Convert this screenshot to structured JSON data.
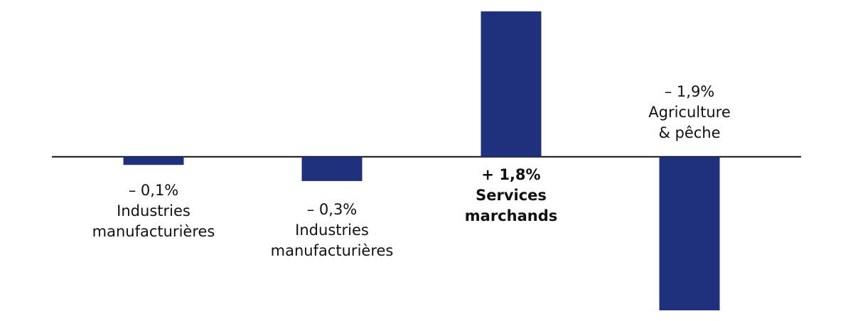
{
  "chart_data": {
    "type": "bar",
    "categories": [
      [
        "Industries",
        "manufacturières"
      ],
      [
        "Industries",
        "manufacturières"
      ],
      [
        "Services",
        "marchands"
      ],
      [
        "Agriculture",
        "& pêche"
      ]
    ],
    "values": [
      -0.1,
      -0.3,
      1.8,
      -1.9
    ],
    "value_labels": [
      "– 0,1%",
      "– 0,3%",
      "+ 1,8%",
      "– 1,9%"
    ],
    "color": "#1f317d"
  }
}
